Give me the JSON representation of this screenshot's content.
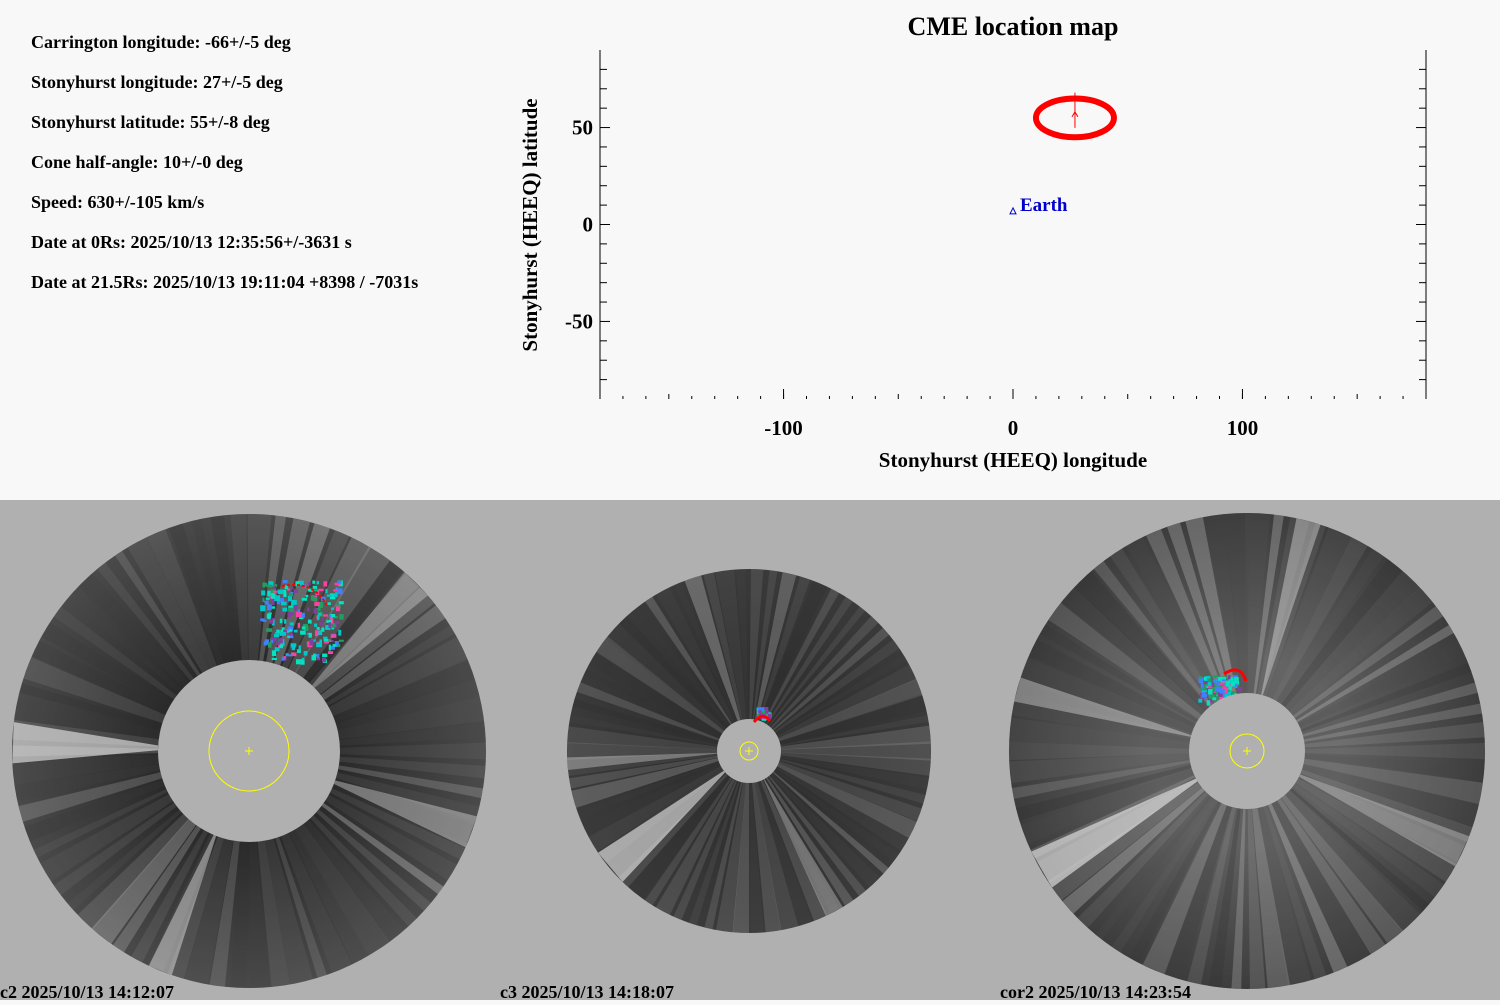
{
  "info": {
    "lines": [
      "Carrington longitude: -66+/-5 deg",
      "Stonyhurst longitude: 27+/-5 deg",
      "Stonyhurst latitude: 55+/-8 deg",
      "Cone half-angle: 10+/-0 deg",
      "Speed: 630+/-105 km/s",
      "Date at 0Rs: 2025/10/13 12:35:56+/-3631 s",
      "Date at 21.5Rs: 2025/10/13 19:11:04 +8398 / -7031s"
    ]
  },
  "chart_data": {
    "type": "scatter",
    "title": "CME location map",
    "xlabel": "Stonyhurst (HEEQ) longitude",
    "ylabel": "Stonyhurst (HEEQ) latitude",
    "xlim": [
      -180,
      180
    ],
    "ylim": [
      -90,
      90
    ],
    "xticks": [
      -100,
      0,
      100
    ],
    "yticks": [
      -50,
      0,
      50
    ],
    "grid": false,
    "earth": {
      "label": "Earth",
      "lon": 0,
      "lat": 7,
      "color": "#0000cc"
    },
    "cme": {
      "lon": 27,
      "lat": 55,
      "lon_err": 17,
      "lat_err": 10,
      "direction_lat": 68,
      "color": "#ff0000"
    }
  },
  "panels": [
    {
      "label": "c2 2025/10/13 14:12:07"
    },
    {
      "label": "c3 2025/10/13 14:18:07"
    },
    {
      "label": "cor2 2025/10/13 14:23:54"
    }
  ],
  "colors": {
    "background": "#f8f8f8",
    "panel_background": "#b0b0b0",
    "occulter": "#b0b0b0",
    "sun_circle": "#ffff00",
    "cme_overlay": "#ff0000",
    "detection": "#00e5c0"
  }
}
